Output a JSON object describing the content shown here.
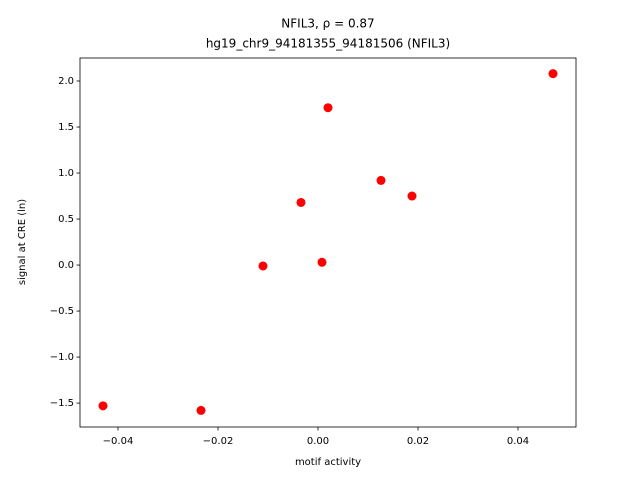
{
  "chart_data": {
    "type": "scatter",
    "title": "NFIL3, ρ = 0.87",
    "subtitle": "hg19_chr9_94181355_94181506 (NFIL3)",
    "x_label": "motif activity",
    "y_label": "signal at CRE (ln)",
    "color": "#ff0000",
    "x": [
      -0.043,
      -0.0234,
      -0.011,
      -0.0034,
      0.0008,
      0.002,
      0.0126,
      0.0188,
      0.047
    ],
    "values": [
      -1.53,
      -1.58,
      -0.01,
      0.68,
      0.03,
      1.71,
      0.92,
      0.75,
      2.08
    ],
    "xlim": [
      -0.0476,
      0.0516
    ],
    "ylim": [
      -1.76,
      2.25
    ],
    "xticks": [
      {
        "value": -0.04,
        "label": "−0.04"
      },
      {
        "value": -0.02,
        "label": "−0.02"
      },
      {
        "value": 0,
        "label": "0.00"
      },
      {
        "value": 0.02,
        "label": "0.02"
      },
      {
        "value": 0.04,
        "label": "0.04"
      }
    ],
    "yticks": [
      {
        "value": -1.5,
        "label": "−1.5"
      },
      {
        "value": -1,
        "label": "−1.0"
      },
      {
        "value": -0.5,
        "label": "−0.5"
      },
      {
        "value": 0,
        "label": "0.0"
      },
      {
        "value": 0.5,
        "label": "0.5"
      },
      {
        "value": 1,
        "label": "1.0"
      },
      {
        "value": 1.5,
        "label": "1.5"
      },
      {
        "value": 2,
        "label": "2.0"
      }
    ]
  }
}
